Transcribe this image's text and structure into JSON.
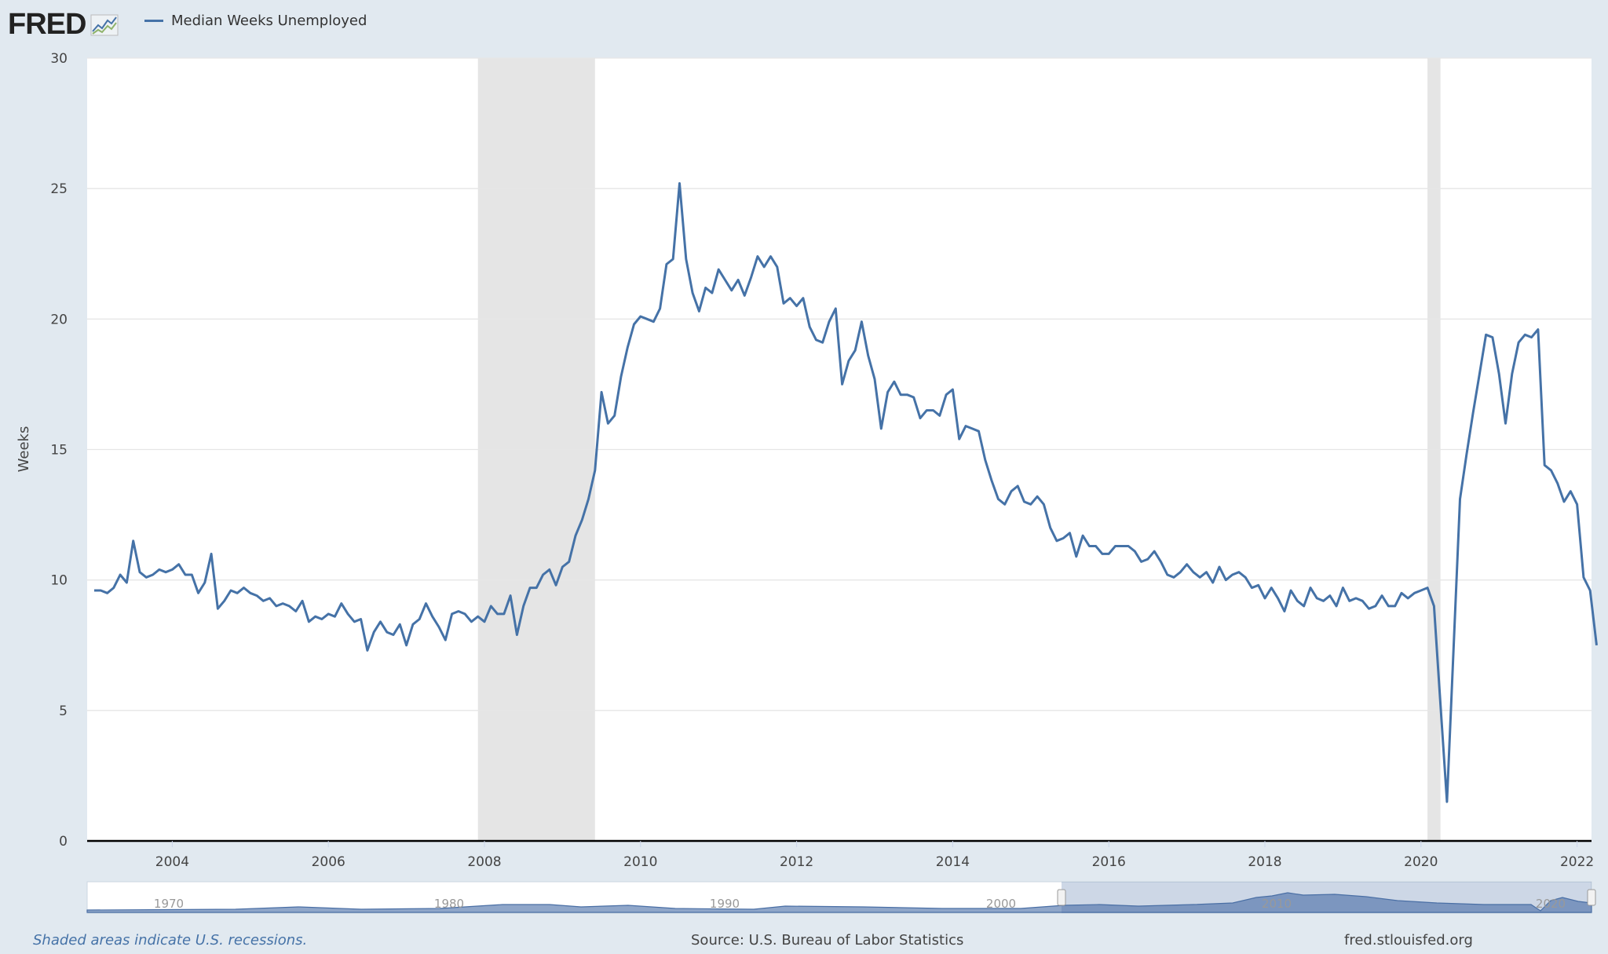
{
  "header": {
    "logo": "FRED",
    "legend_label": "Median Weeks Unemployed"
  },
  "footer": {
    "recession_note": "Shaded areas indicate U.S. recessions.",
    "source": "Source: U.S. Bureau of Labor Statistics",
    "site": "fred.stlouisfed.org"
  },
  "navigator": {
    "labels": [
      "1970",
      "1980",
      "1990",
      "2000",
      "2010",
      "2020"
    ]
  },
  "chart_data": {
    "type": "line",
    "title": "",
    "xlabel": "",
    "ylabel": "Weeks",
    "ylim": [
      0,
      30
    ],
    "yticks": [
      0,
      5,
      10,
      15,
      20,
      25,
      30
    ],
    "xticks": [
      "2004",
      "2006",
      "2008",
      "2010",
      "2012",
      "2014",
      "2016",
      "2018",
      "2020",
      "2022"
    ],
    "grid": true,
    "line_color": "#4572a7",
    "recession_color": "#e5e5e5",
    "recessions": [
      [
        "2007-12",
        "2009-06"
      ],
      [
        "2020-02",
        "2020-04"
      ]
    ],
    "start": "2003-01",
    "frequency": "monthly",
    "series": [
      {
        "name": "Median Weeks Unemployed",
        "values": [
          9.6,
          9.6,
          9.5,
          9.7,
          10.2,
          9.9,
          11.5,
          10.3,
          10.1,
          10.2,
          10.4,
          10.3,
          10.4,
          10.6,
          10.2,
          10.2,
          9.5,
          9.9,
          11.0,
          8.9,
          9.2,
          9.6,
          9.5,
          9.7,
          9.5,
          9.4,
          9.2,
          9.3,
          9.0,
          9.1,
          9.0,
          8.8,
          9.2,
          8.4,
          8.6,
          8.5,
          8.7,
          8.6,
          9.1,
          8.7,
          8.4,
          8.5,
          7.3,
          8.0,
          8.4,
          8.0,
          7.9,
          8.3,
          7.5,
          8.3,
          8.5,
          9.1,
          8.6,
          8.2,
          7.7,
          8.7,
          8.8,
          8.7,
          8.4,
          8.6,
          8.4,
          9.0,
          8.7,
          8.7,
          9.4,
          7.9,
          9.0,
          9.7,
          9.7,
          10.2,
          10.4,
          9.8,
          10.5,
          10.7,
          11.7,
          12.3,
          13.1,
          14.2,
          17.2,
          16.0,
          16.3,
          17.8,
          18.9,
          19.8,
          20.1,
          20.0,
          19.9,
          20.4,
          22.1,
          22.3,
          25.2,
          22.3,
          21.0,
          20.3,
          21.2,
          21.0,
          21.9,
          21.5,
          21.1,
          21.5,
          20.9,
          21.6,
          22.4,
          22.0,
          22.4,
          22.0,
          20.6,
          20.8,
          20.5,
          20.8,
          19.7,
          19.2,
          19.1,
          19.9,
          20.4,
          17.5,
          18.4,
          18.8,
          19.9,
          18.6,
          17.7,
          15.8,
          17.2,
          17.6,
          17.1,
          17.1,
          17.0,
          16.2,
          16.5,
          16.5,
          16.3,
          17.1,
          17.3,
          15.4,
          15.9,
          15.8,
          15.7,
          14.6,
          13.8,
          13.1,
          12.9,
          13.4,
          13.6,
          13.0,
          12.9,
          13.2,
          12.9,
          12.0,
          11.5,
          11.6,
          11.8,
          10.9,
          11.7,
          11.3,
          11.3,
          11.0,
          11.0,
          11.3,
          11.3,
          11.3,
          11.1,
          10.7,
          10.8,
          11.1,
          10.7,
          10.2,
          10.1,
          10.3,
          10.6,
          10.3,
          10.1,
          10.3,
          9.9,
          10.5,
          10.0,
          10.2,
          10.3,
          10.1,
          9.7,
          9.8,
          9.3,
          9.7,
          9.3,
          8.8,
          9.6,
          9.2,
          9.0,
          9.7,
          9.3,
          9.2,
          9.4,
          9.0,
          9.7,
          9.2,
          9.3,
          9.2,
          8.9,
          9.0,
          9.4,
          9.0,
          9.0,
          9.5,
          9.3,
          9.5,
          9.6,
          9.7,
          9.0,
          5.2,
          1.5,
          7.3,
          13.1,
          14.8,
          16.4,
          17.9,
          19.4,
          19.3,
          17.9,
          16.0,
          17.9,
          19.1,
          19.4,
          19.3,
          19.6,
          14.4,
          14.2,
          13.7,
          13.0,
          13.4,
          12.9,
          10.1,
          9.6,
          7.5
        ]
      }
    ]
  }
}
